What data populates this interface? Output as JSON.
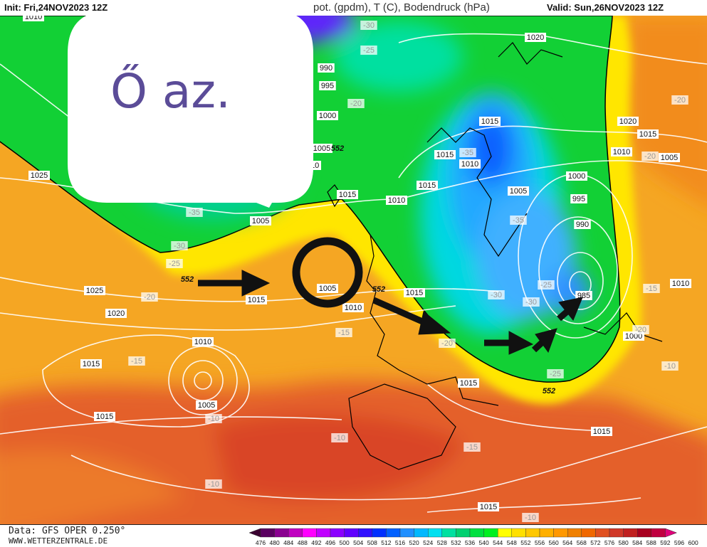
{
  "header": {
    "init": "Init: Fri,24NOV2023 12Z",
    "title": "pot. (gpdm), T (C), Bodendruck (hPa)",
    "valid": "Valid: Sun,26NOV2023 12Z"
  },
  "annotation": {
    "speech_text": "Ő az.",
    "text_color": "#5b4c98",
    "marker": "black-circle",
    "arrows": 5
  },
  "isobar_labels": [
    "1010",
    "990",
    "995",
    "1000",
    "1005",
    "1010",
    "1025",
    "1015",
    "1000",
    "1005",
    "1010",
    "1015",
    "1015",
    "1010",
    "1015",
    "1020",
    "1020",
    "1015",
    "1010",
    "1005",
    "1000",
    "995",
    "990",
    "1005",
    "985",
    "1000",
    "1010",
    "1025",
    "1020",
    "1015",
    "1005",
    "1010",
    "1015",
    "1010",
    "1015",
    "1005",
    "1015",
    "1015",
    "1015",
    "1015"
  ],
  "temperature_labels": [
    "-30",
    "-25",
    "-20",
    "-35",
    "-30",
    "-25",
    "-20",
    "-15",
    "-15",
    "-20",
    "-30",
    "-35",
    "-35",
    "-25",
    "-30",
    "-25",
    "-15",
    "-20",
    "-10",
    "-10",
    "-10",
    "-15",
    "-10",
    "-10",
    "-20",
    "-20"
  ],
  "contour_552_labels": [
    "552",
    "552",
    "552",
    "552"
  ],
  "footer": {
    "data_source": "Data: GFS OPER 0.250°",
    "website": "WWW.WETTERZENTRALE.DE"
  },
  "legend": {
    "values": [
      "476",
      "480",
      "484",
      "488",
      "492",
      "496",
      "500",
      "504",
      "508",
      "512",
      "516",
      "520",
      "524",
      "528",
      "532",
      "536",
      "540",
      "544",
      "548",
      "552",
      "556",
      "560",
      "564",
      "568",
      "572",
      "576",
      "580",
      "584",
      "588",
      "592",
      "596",
      "600"
    ],
    "colors": [
      "#3a0030",
      "#5a0060",
      "#8a0090",
      "#c000c0",
      "#ff00ff",
      "#c000ff",
      "#8a00ff",
      "#6000ff",
      "#3010ff",
      "#0030ff",
      "#0060ff",
      "#2090ff",
      "#00b8ff",
      "#00e0f0",
      "#00e0a0",
      "#00d070",
      "#00e040",
      "#00f020",
      "#ffff00",
      "#ffe000",
      "#ffc800",
      "#ffb000",
      "#ff9800",
      "#f08000",
      "#f06800",
      "#e05020",
      "#d03828",
      "#c02020",
      "#a80020",
      "#c00040",
      "#e0007a"
    ]
  }
}
